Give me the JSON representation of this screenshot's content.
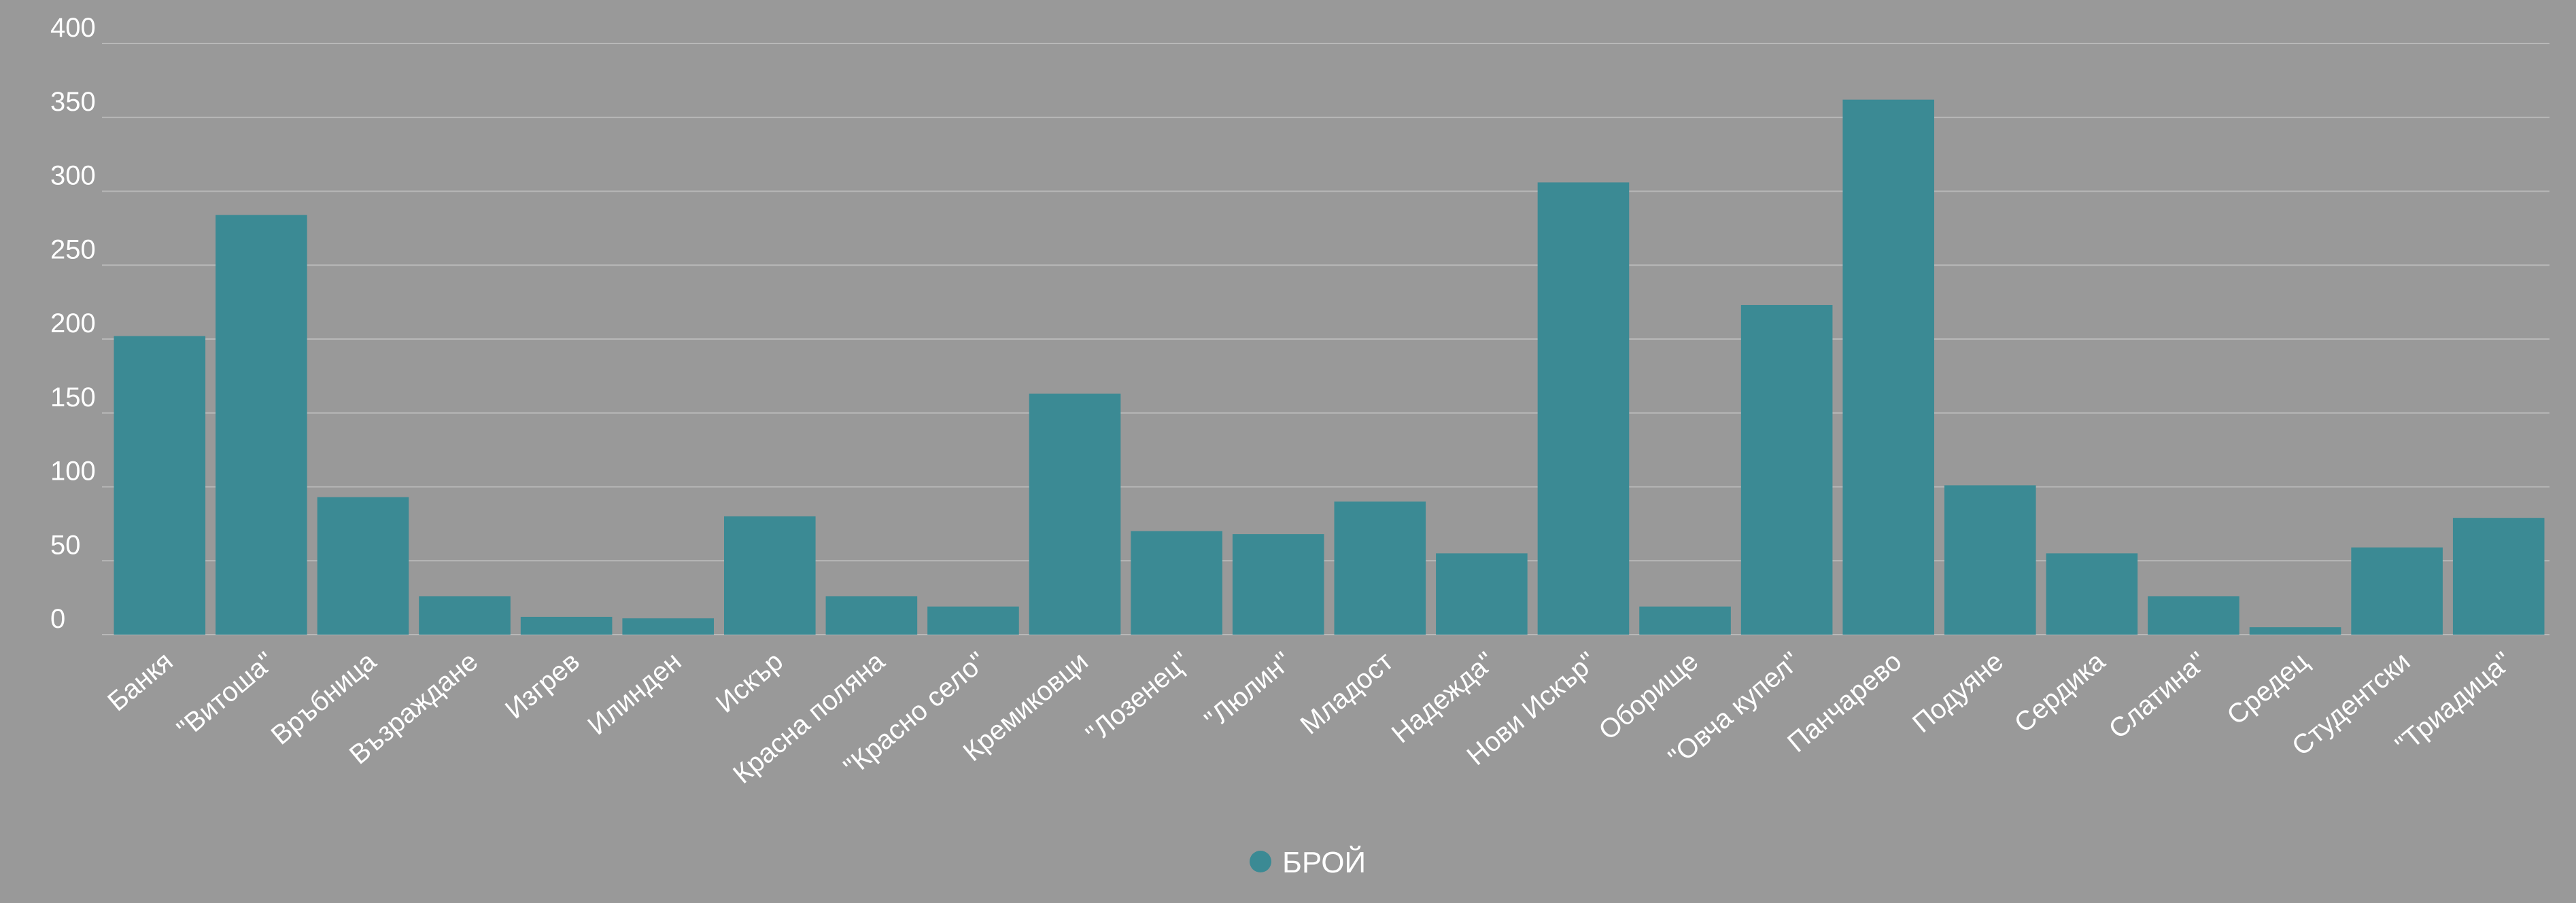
{
  "colors": {
    "background": "#999999",
    "bar": "#3b8a94",
    "grid": "#b8b8b8",
    "text": "#ffffff"
  },
  "chart_data": {
    "type": "bar",
    "title": "",
    "xlabel": "",
    "ylabel": "",
    "ylim": [
      0,
      400
    ],
    "yticks": [
      0,
      50,
      100,
      150,
      200,
      250,
      300,
      350,
      400
    ],
    "grid": true,
    "legend_position": "bottom-center",
    "categories": [
      "Банкя",
      "\"Витоша\"",
      "Връбница",
      "Възраждане",
      "Изгрев",
      "Илинден",
      "Искър",
      "Красна поляна",
      "\"Красно село\"",
      "Кремиковци",
      "\"Лозенец\"",
      "\"Люлин\"",
      "Младост",
      "Надежда\"",
      "Нови Искър\"",
      "Оборище",
      "\"Овча купел\"",
      "Панчарево",
      "Подуяне",
      "Сердика",
      "Слатина\"",
      "Средец",
      "Студентски",
      "\"Триадица\""
    ],
    "series": [
      {
        "name": "БРОЙ",
        "values": [
          202,
          284,
          93,
          26,
          12,
          11,
          80,
          26,
          19,
          163,
          70,
          68,
          90,
          55,
          306,
          19,
          223,
          362,
          101,
          55,
          26,
          5,
          59,
          79
        ]
      }
    ]
  }
}
